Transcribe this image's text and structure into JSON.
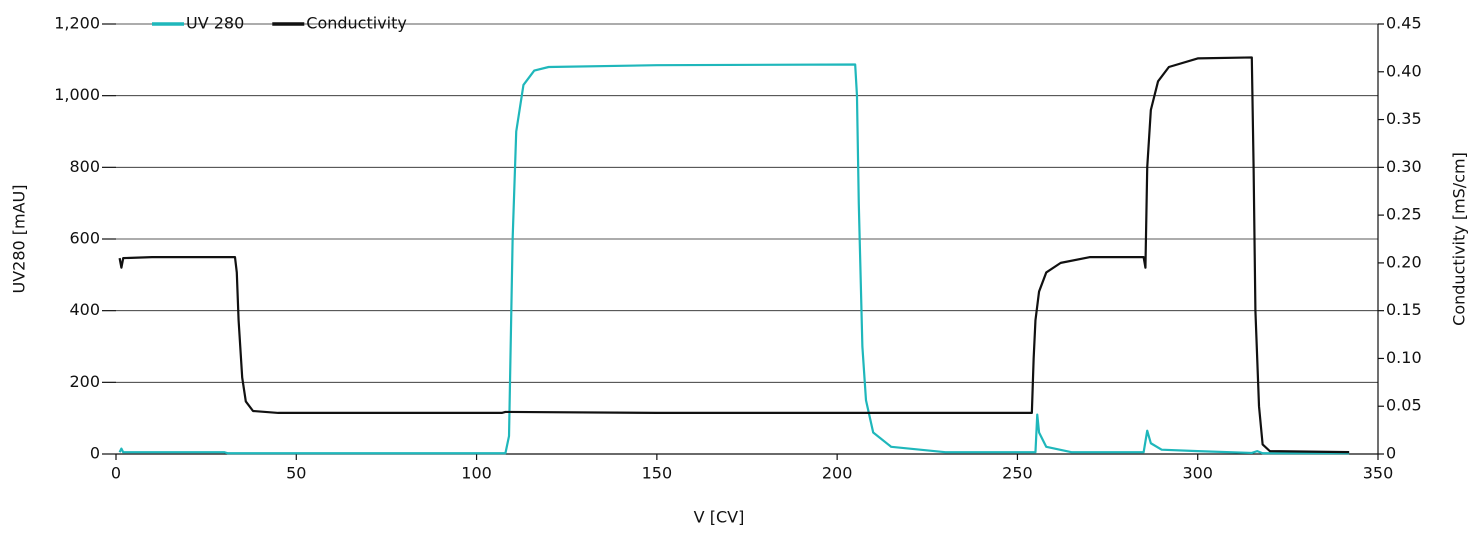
{
  "chart_data": {
    "type": "line",
    "x_label": "V [CV]",
    "y_label": "UV280 [mAU]",
    "y2_label": "Conductivity [mS/cm]",
    "xlim": [
      0,
      350
    ],
    "xticks": [
      0,
      50,
      100,
      150,
      200,
      250,
      300,
      350
    ],
    "ylim": [
      0,
      1200
    ],
    "yticks": [
      0,
      200,
      400,
      600,
      800,
      {
        "value": 1000,
        "label": "1,000"
      },
      {
        "value": 1200,
        "label": "1,200"
      }
    ],
    "y2lim": [
      0,
      0.45
    ],
    "y2ticks": [
      0,
      0.05,
      {
        "value": 0.1,
        "label": "0.10"
      },
      0.15,
      {
        "value": 0.2,
        "label": "0.20"
      },
      0.25,
      {
        "value": 0.3,
        "label": "0.30"
      },
      0.35,
      {
        "value": 0.4,
        "label": "0.40"
      },
      0.45
    ],
    "grid": true,
    "legend": "top-left",
    "series": [
      {
        "name": "UV 280",
        "color": "#1fb7bb",
        "x": [
          1,
          1.5,
          2,
          30,
          31,
          108,
          109,
          110,
          111,
          113,
          116,
          120,
          150,
          205,
          205.5,
          206,
          207,
          208,
          210,
          215,
          230,
          255,
          255.5,
          256,
          258,
          265,
          285,
          286,
          287,
          290,
          300,
          315,
          316.5,
          318,
          342
        ],
        "values": [
          5,
          15,
          5,
          5,
          2,
          2,
          50,
          600,
          900,
          1030,
          1070,
          1080,
          1085,
          1087,
          1000,
          700,
          300,
          150,
          60,
          20,
          5,
          5,
          110,
          60,
          20,
          5,
          5,
          65,
          30,
          12,
          8,
          3,
          8,
          2,
          2
        ]
      },
      {
        "name": "Conductivity",
        "color": "#111111",
        "axis": "y2",
        "x": [
          1,
          1.5,
          2,
          10,
          33,
          33.5,
          34,
          35,
          36,
          38,
          45,
          107,
          108,
          109,
          150,
          200,
          254,
          254.5,
          255,
          256,
          258,
          262,
          270,
          285,
          285.5,
          286,
          287,
          289,
          292,
          300,
          315,
          315.5,
          316,
          317,
          318,
          320,
          342
        ],
        "values": [
          0.205,
          0.195,
          0.205,
          0.206,
          0.206,
          0.19,
          0.14,
          0.08,
          0.055,
          0.045,
          0.043,
          0.043,
          0.044,
          0.044,
          0.043,
          0.043,
          0.043,
          0.1,
          0.14,
          0.17,
          0.19,
          0.2,
          0.206,
          0.206,
          0.195,
          0.3,
          0.36,
          0.39,
          0.405,
          0.414,
          0.415,
          0.3,
          0.15,
          0.05,
          0.01,
          0.003,
          0.002
        ]
      }
    ]
  }
}
